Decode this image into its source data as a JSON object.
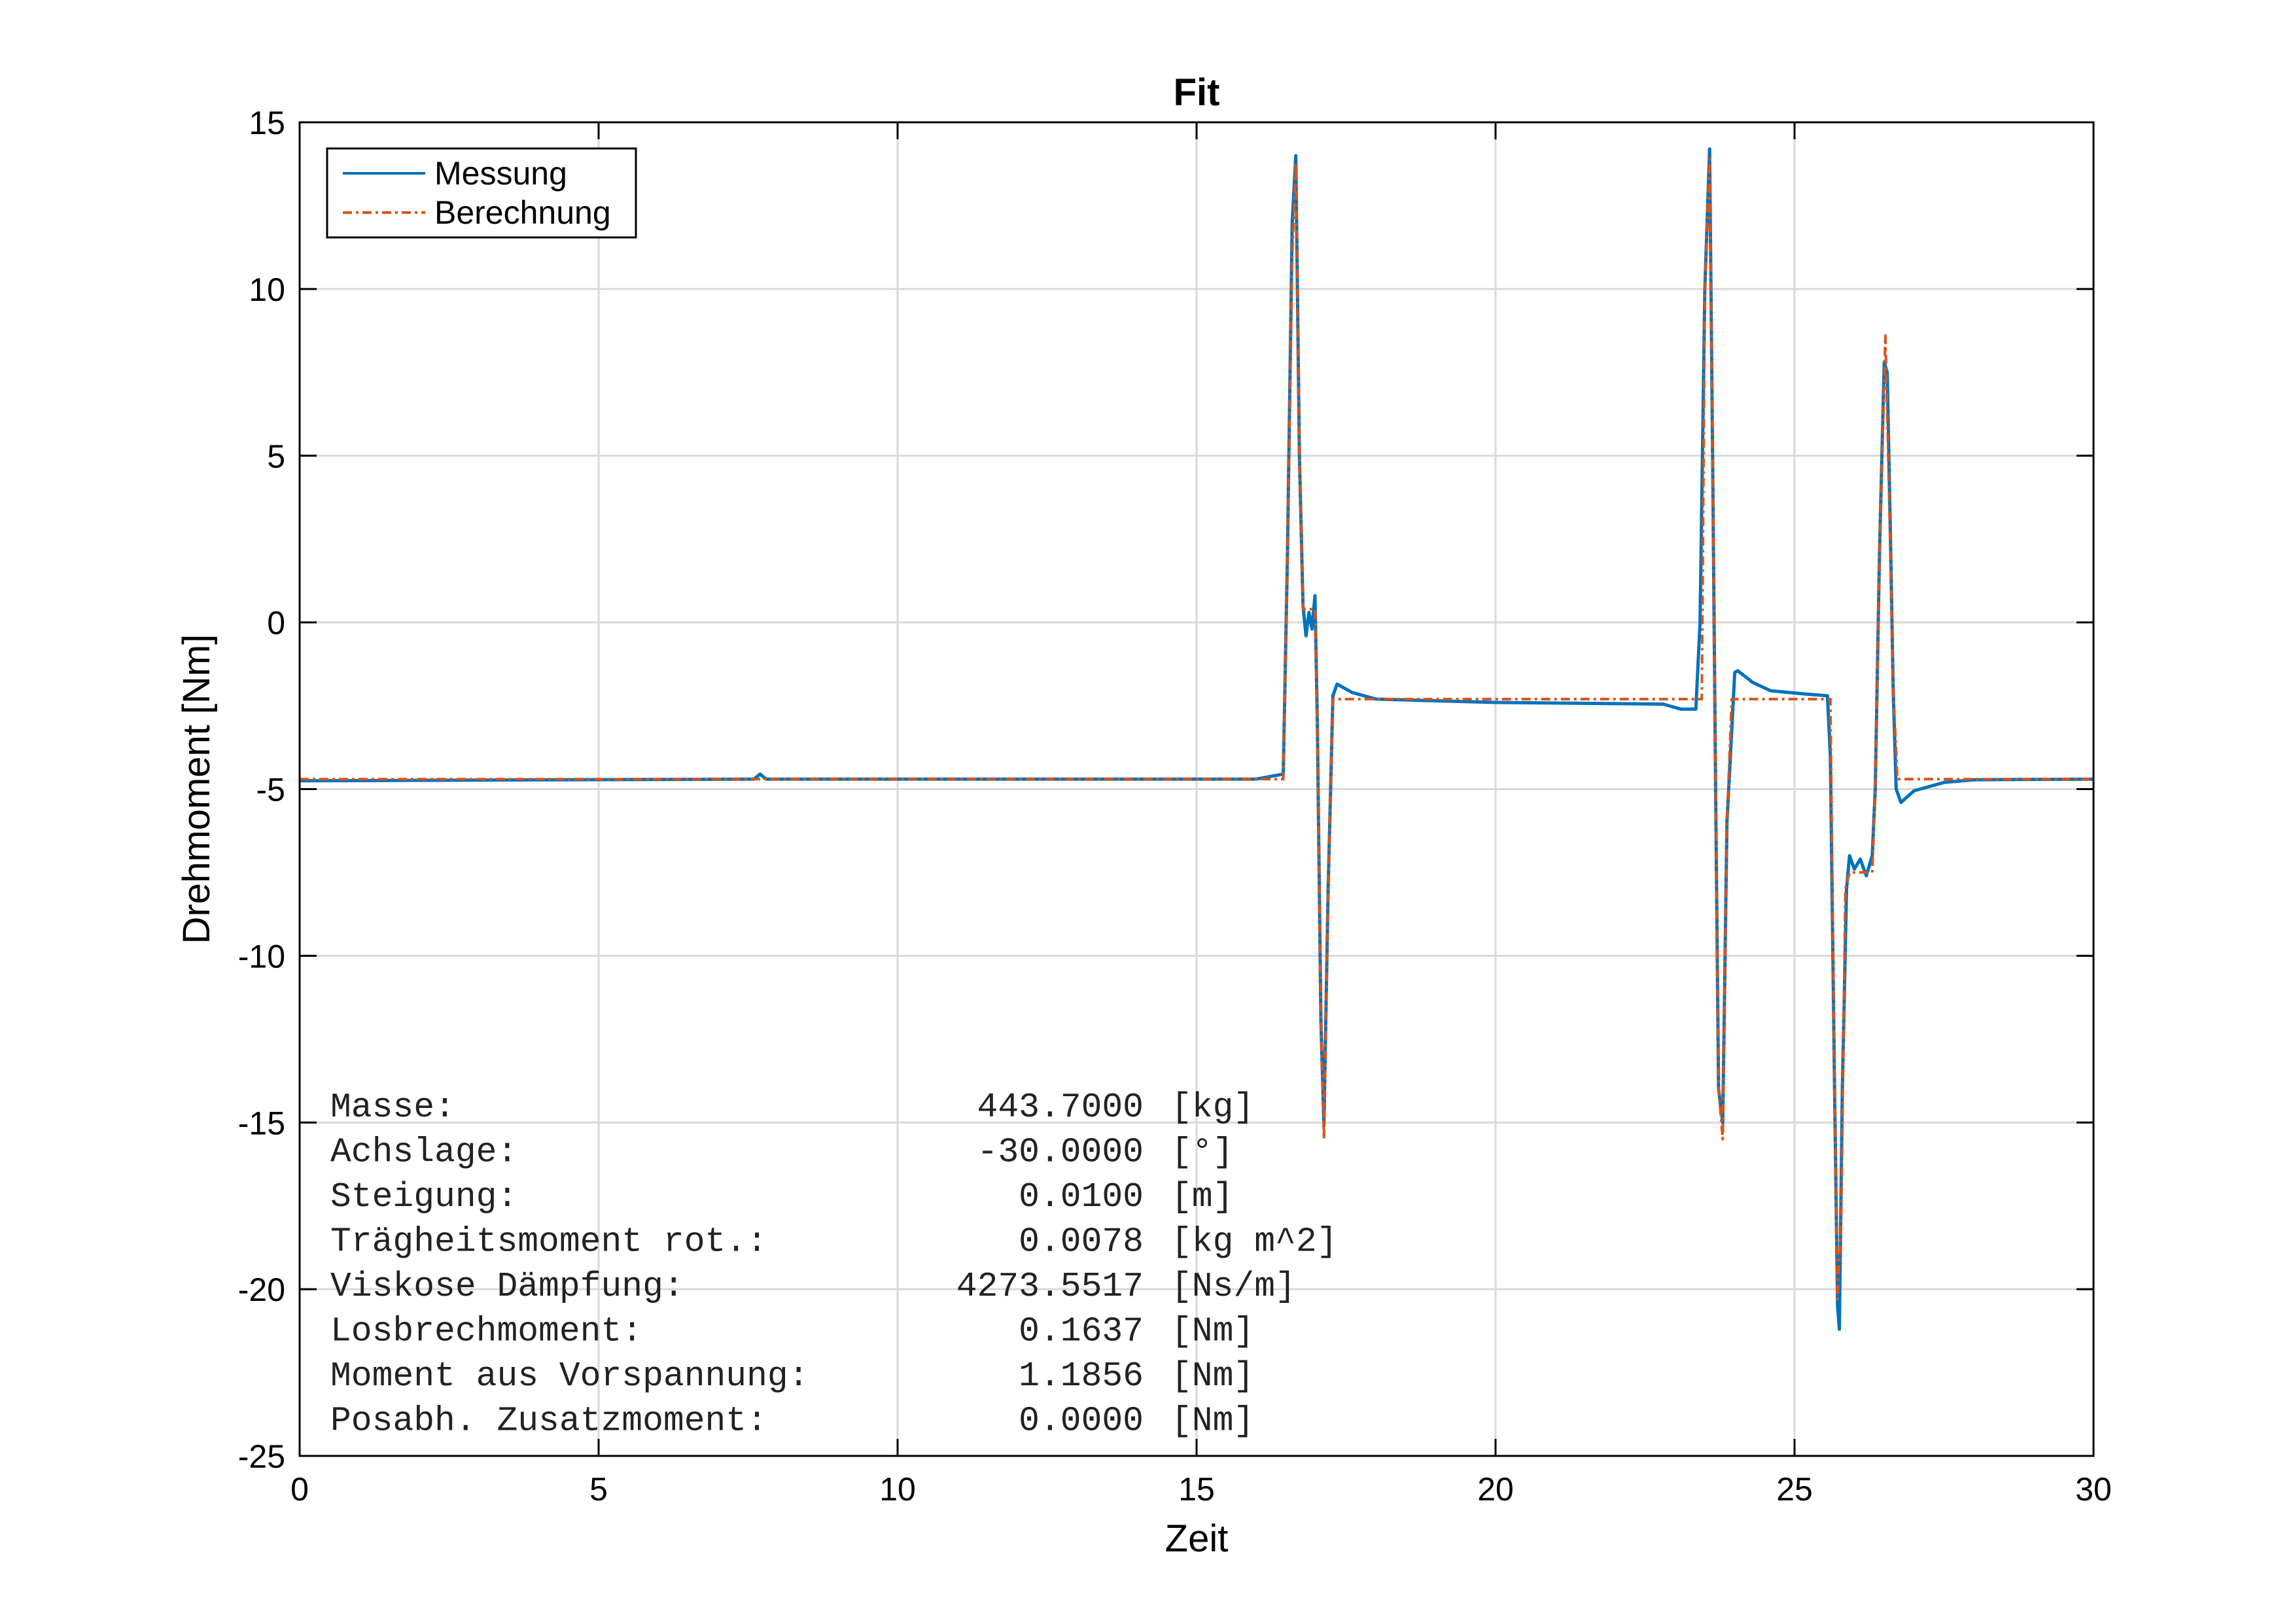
{
  "chart_data": {
    "type": "line",
    "title": "Fit",
    "xlabel": "Zeit",
    "ylabel": "Drehmoment [Nm]",
    "xlim": [
      0,
      30
    ],
    "ylim": [
      -25,
      15
    ],
    "x_ticks": [
      0,
      5,
      10,
      15,
      20,
      25,
      30
    ],
    "y_ticks": [
      15,
      10,
      5,
      0,
      -5,
      -10,
      -15,
      -20,
      -25
    ],
    "grid": true,
    "legend_position": "top-left",
    "series": [
      {
        "name": "Messung",
        "color": "#0072BD",
        "style": "solid",
        "points": [
          [
            0,
            -4.75
          ],
          [
            7.6,
            -4.7
          ],
          [
            7.7,
            -4.55
          ],
          [
            7.8,
            -4.7
          ],
          [
            16.0,
            -4.7
          ],
          [
            16.3,
            -4.6
          ],
          [
            16.45,
            -4.55
          ],
          [
            16.52,
            2
          ],
          [
            16.6,
            12
          ],
          [
            16.66,
            14.0
          ],
          [
            16.72,
            5
          ],
          [
            16.78,
            0.5
          ],
          [
            16.83,
            -0.4
          ],
          [
            16.88,
            0.3
          ],
          [
            16.93,
            -0.2
          ],
          [
            16.98,
            0.8
          ],
          [
            17.02,
            -3
          ],
          [
            17.08,
            -12
          ],
          [
            17.13,
            -15.1
          ],
          [
            17.2,
            -8
          ],
          [
            17.28,
            -2.2
          ],
          [
            17.35,
            -1.85
          ],
          [
            17.6,
            -2.1
          ],
          [
            18.0,
            -2.3
          ],
          [
            20.0,
            -2.4
          ],
          [
            22.8,
            -2.45
          ],
          [
            23.1,
            -2.6
          ],
          [
            23.35,
            -2.6
          ],
          [
            23.42,
            0
          ],
          [
            23.5,
            10
          ],
          [
            23.58,
            14.2
          ],
          [
            23.63,
            5
          ],
          [
            23.68,
            -5
          ],
          [
            23.73,
            -14
          ],
          [
            23.8,
            -15
          ],
          [
            23.87,
            -6
          ],
          [
            24.0,
            -1.5
          ],
          [
            24.05,
            -1.45
          ],
          [
            24.3,
            -1.8
          ],
          [
            24.6,
            -2.05
          ],
          [
            25.2,
            -2.15
          ],
          [
            25.55,
            -2.2
          ],
          [
            25.6,
            -4
          ],
          [
            25.67,
            -14
          ],
          [
            25.72,
            -20.5
          ],
          [
            25.75,
            -21.2
          ],
          [
            25.8,
            -14
          ],
          [
            25.87,
            -8
          ],
          [
            25.92,
            -7.0
          ],
          [
            26.0,
            -7.4
          ],
          [
            26.1,
            -7.1
          ],
          [
            26.2,
            -7.6
          ],
          [
            26.3,
            -7.0
          ],
          [
            26.35,
            -5
          ],
          [
            26.42,
            2
          ],
          [
            26.5,
            7.8
          ],
          [
            26.55,
            7.5
          ],
          [
            26.6,
            3
          ],
          [
            26.65,
            -2
          ],
          [
            26.7,
            -5.0
          ],
          [
            26.78,
            -5.4
          ],
          [
            27.0,
            -5.05
          ],
          [
            27.5,
            -4.8
          ],
          [
            28.0,
            -4.72
          ],
          [
            30.0,
            -4.7
          ]
        ]
      },
      {
        "name": "Berechnung",
        "color": "#D95319",
        "style": "dashed",
        "points": [
          [
            0,
            -4.7
          ],
          [
            16.45,
            -4.7
          ],
          [
            16.52,
            2
          ],
          [
            16.6,
            11
          ],
          [
            16.66,
            13.8
          ],
          [
            16.72,
            5
          ],
          [
            16.78,
            0.4
          ],
          [
            16.9,
            0.4
          ],
          [
            16.98,
            0.4
          ],
          [
            17.02,
            -3
          ],
          [
            17.08,
            -12
          ],
          [
            17.13,
            -15.5
          ],
          [
            17.2,
            -8
          ],
          [
            17.28,
            -2.3
          ],
          [
            23.45,
            -2.3
          ],
          [
            23.5,
            10
          ],
          [
            23.58,
            13.9
          ],
          [
            23.63,
            5
          ],
          [
            23.68,
            -5
          ],
          [
            23.73,
            -14
          ],
          [
            23.8,
            -15.5
          ],
          [
            23.87,
            -6
          ],
          [
            23.95,
            -2.3
          ],
          [
            25.6,
            -2.3
          ],
          [
            25.67,
            -14
          ],
          [
            25.72,
            -20.3
          ],
          [
            25.78,
            -18
          ],
          [
            25.85,
            -8
          ],
          [
            25.92,
            -7.5
          ],
          [
            26.3,
            -7.5
          ],
          [
            26.35,
            -5
          ],
          [
            26.42,
            2
          ],
          [
            26.52,
            8.6
          ],
          [
            26.58,
            4
          ],
          [
            26.65,
            -2
          ],
          [
            26.72,
            -4.7
          ],
          [
            30.0,
            -4.7
          ]
        ]
      }
    ],
    "annotations": [
      {
        "label": "Masse:",
        "value": "443.7000",
        "unit": "[kg]"
      },
      {
        "label": "Achslage:",
        "value": "-30.0000",
        "unit": "[°]"
      },
      {
        "label": "Steigung:",
        "value": "0.0100",
        "unit": "[m]"
      },
      {
        "label": "Trägheitsmoment rot.:",
        "value": "0.0078",
        "unit": "[kg m^2]"
      },
      {
        "label": "Viskose Dämpfung:",
        "value": "4273.5517",
        "unit": "[Ns/m]"
      },
      {
        "label": "Losbrechmoment:",
        "value": "0.1637",
        "unit": "[Nm]"
      },
      {
        "label": "Moment aus Vorspannung:",
        "value": "1.1856",
        "unit": "[Nm]"
      },
      {
        "label": "Posabh. Zusatzmoment:",
        "value": "0.0000",
        "unit": "[Nm]"
      }
    ]
  }
}
